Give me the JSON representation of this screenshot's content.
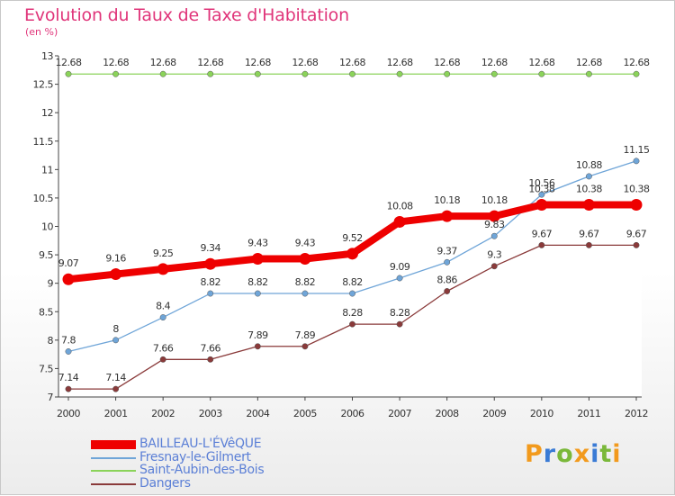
{
  "title": "Evolution du Taux de Taxe d'Habitation",
  "unit_label": "(en %)",
  "logo": {
    "text": "Proxiti",
    "colors": [
      "#f29a1d",
      "#3a7bd5",
      "#7ab83a",
      "#f29a1d",
      "#3a7bd5",
      "#7ab83a",
      "#f29a1d"
    ]
  },
  "chart_data": {
    "type": "line",
    "title": "Evolution du Taux de Taxe d'Habitation",
    "ylabel": "(en %)",
    "xlabel": "",
    "x": [
      "2000",
      "2001",
      "2002",
      "2003",
      "2004",
      "2005",
      "2006",
      "2007",
      "2008",
      "2009",
      "2010",
      "2011",
      "2012"
    ],
    "ylim": [
      7,
      13
    ],
    "yticks": [
      "7",
      "7.5",
      "8",
      "8.5",
      "9",
      "9.5",
      "10",
      "10.5",
      "11",
      "11.5",
      "12",
      "12.5",
      "13"
    ],
    "grid": false,
    "legend_position": "bottom-left",
    "series": [
      {
        "name": "BAILLEAU-L'ÉVêQUE",
        "color": "#ee0000",
        "values": [
          9.07,
          9.16,
          9.25,
          9.34,
          9.43,
          9.43,
          9.52,
          10.08,
          10.18,
          10.18,
          10.38,
          10.38,
          10.38
        ],
        "labels": [
          "9.07",
          "9.16",
          "9.25",
          "9.34",
          "9.43",
          "9.43",
          "9.52",
          "10.08",
          "10.18",
          "10.18",
          "10.38",
          "10.38",
          "10.38"
        ]
      },
      {
        "name": "Fresnay-le-Gilmert",
        "color": "#6fa5d8",
        "values": [
          7.8,
          8.0,
          8.4,
          8.82,
          8.82,
          8.82,
          8.82,
          9.09,
          9.37,
          9.83,
          10.56,
          10.88,
          11.15
        ],
        "labels": [
          "7.8",
          "8",
          "8.4",
          "8.82",
          "8.82",
          "8.82",
          "8.82",
          "9.09",
          "9.37",
          "9.83",
          "10.56",
          "10.88",
          "11.15"
        ]
      },
      {
        "name": "Saint-Aubin-des-Bois",
        "color": "#8bd35a",
        "values": [
          12.68,
          12.68,
          12.68,
          12.68,
          12.68,
          12.68,
          12.68,
          12.68,
          12.68,
          12.68,
          12.68,
          12.68,
          12.68
        ],
        "labels": [
          "12.68",
          "12.68",
          "12.68",
          "12.68",
          "12.68",
          "12.68",
          "12.68",
          "12.68",
          "12.68",
          "12.68",
          "12.68",
          "12.68",
          "12.68"
        ]
      },
      {
        "name": "Dangers",
        "color": "#8a3a3a",
        "values": [
          7.14,
          7.14,
          7.66,
          7.66,
          7.89,
          7.89,
          8.28,
          8.28,
          8.86,
          9.3,
          9.67,
          9.67,
          9.67
        ],
        "labels": [
          "7.14",
          "7.14",
          "7.66",
          "7.66",
          "7.89",
          "7.89",
          "8.28",
          "8.28",
          "8.86",
          "9.3",
          "9.67",
          "9.67",
          "9.67"
        ]
      }
    ]
  }
}
